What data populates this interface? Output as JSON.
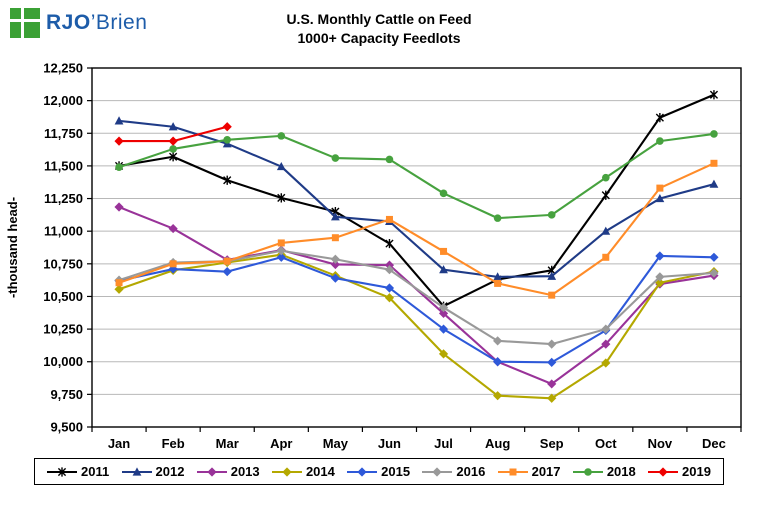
{
  "logo": {
    "bold": "RJO",
    "rest": "’Brien",
    "green": "#3BA135",
    "blue": "#1D5CA9"
  },
  "title": {
    "line1": "U.S. Monthly Cattle on Feed",
    "line2": "1000+ Capacity Feedlots"
  },
  "chart_data": {
    "type": "line",
    "x": [
      "Jan",
      "Feb",
      "Mar",
      "Apr",
      "May",
      "Jun",
      "Jul",
      "Aug",
      "Sep",
      "Oct",
      "Nov",
      "Dec"
    ],
    "ylabel": "-thousand head-",
    "ylim": [
      9500,
      12250
    ],
    "ytick_step": 250,
    "grid": true,
    "legend_position": "bottom",
    "series": [
      {
        "name": "2011",
        "color": "#000000",
        "marker": "star",
        "values": [
          11500,
          11570,
          11390,
          11255,
          11150,
          10905,
          10425,
          10630,
          10700,
          11275,
          11870,
          12045
        ]
      },
      {
        "name": "2012",
        "color": "#1F3B87",
        "marker": "triangle",
        "values": [
          11845,
          11800,
          11670,
          11495,
          11110,
          11075,
          10705,
          10650,
          10655,
          11000,
          11250,
          11360
        ]
      },
      {
        "name": "2013",
        "color": "#993399",
        "marker": "diamond",
        "values": [
          11185,
          11020,
          10780,
          10855,
          10745,
          10740,
          10370,
          10000,
          9830,
          10135,
          10595,
          10660
        ]
      },
      {
        "name": "2014",
        "color": "#B4A800",
        "marker": "diamond",
        "values": [
          10555,
          10700,
          10760,
          10820,
          10660,
          10490,
          10060,
          9740,
          9720,
          9990,
          10605,
          10690
        ]
      },
      {
        "name": "2015",
        "color": "#2E59D9",
        "marker": "diamond",
        "values": [
          10620,
          10710,
          10690,
          10800,
          10640,
          10565,
          10250,
          10000,
          9995,
          10240,
          10810,
          10800
        ]
      },
      {
        "name": "2016",
        "color": "#999999",
        "marker": "diamond",
        "values": [
          10625,
          10760,
          10770,
          10850,
          10785,
          10705,
          10415,
          10160,
          10135,
          10250,
          10650,
          10680
        ]
      },
      {
        "name": "2017",
        "color": "#FF8C29",
        "marker": "square",
        "values": [
          10605,
          10750,
          10770,
          10910,
          10950,
          11090,
          10845,
          10600,
          10510,
          10800,
          11330,
          11520
        ]
      },
      {
        "name": "2018",
        "color": "#47A23F",
        "marker": "circle",
        "values": [
          11490,
          11630,
          11700,
          11730,
          11560,
          11550,
          11290,
          11100,
          11125,
          11410,
          11690,
          11745
        ]
      },
      {
        "name": "2019",
        "color": "#EE0000",
        "marker": "diamond",
        "values": [
          11690,
          11690,
          11800
        ]
      }
    ]
  }
}
